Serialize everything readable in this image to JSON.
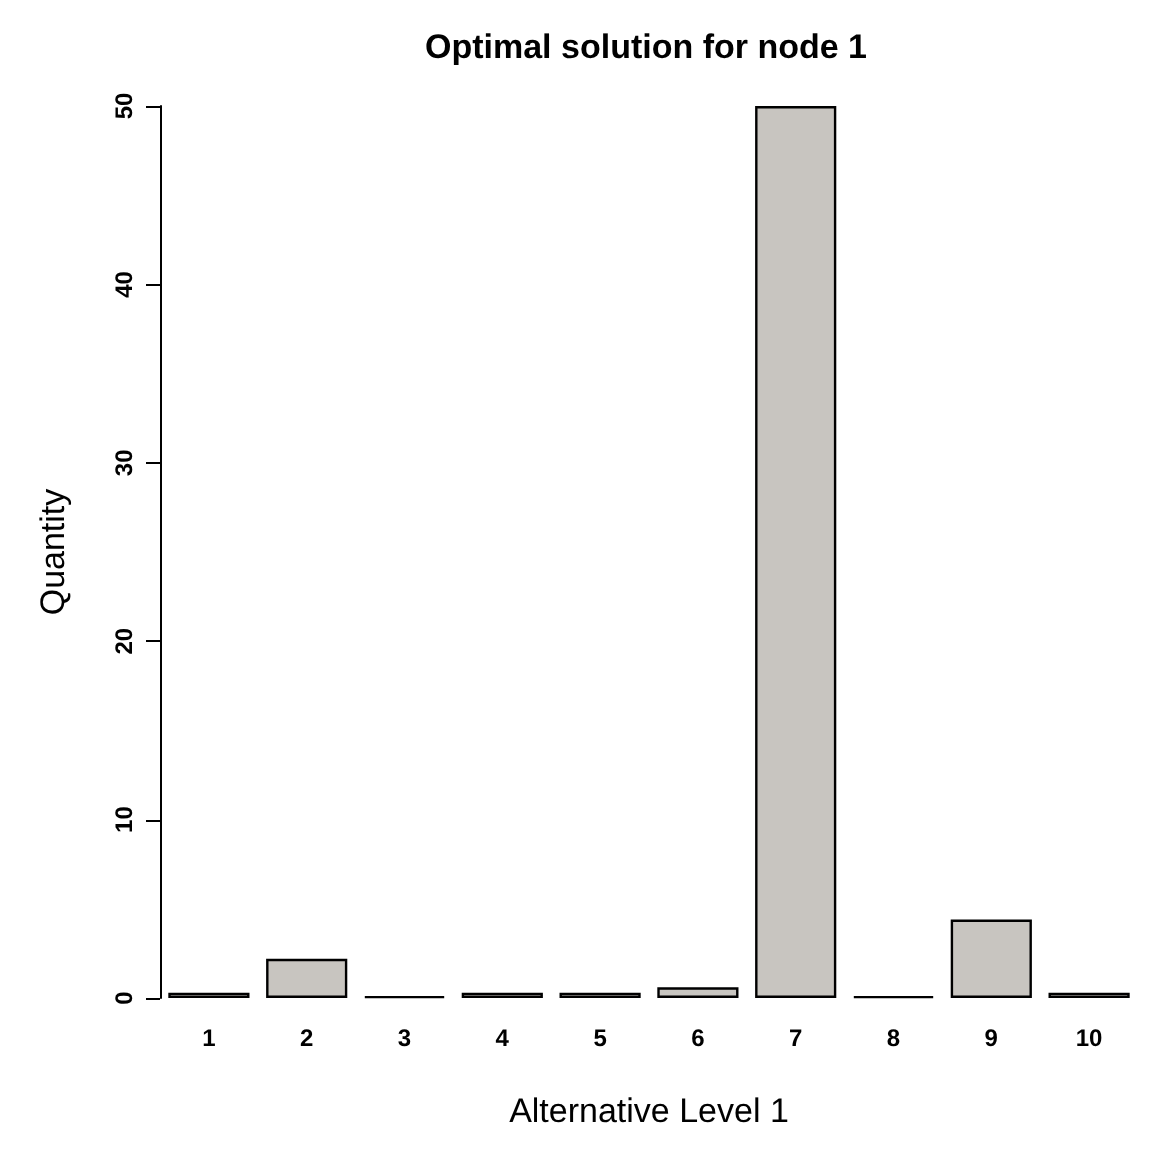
{
  "chart_data": {
    "type": "bar",
    "title": "Optimal solution for node 1",
    "xlabel": "Alternative Level 1",
    "ylabel": "Quantity",
    "categories": [
      "1",
      "2",
      "3",
      "4",
      "5",
      "6",
      "7",
      "8",
      "9",
      "10"
    ],
    "values": [
      0.3,
      2.2,
      0.1,
      0.3,
      0.3,
      0.6,
      50,
      0.1,
      4.4,
      0.3
    ],
    "colors": [
      "#c8c5c0",
      "#c8c5c0",
      "#000000",
      "#c8c5c0",
      "#c8c5c0",
      "#c8c5c0",
      "#c8c5c0",
      "#000000",
      "#c8c5c0",
      "#c8c5c0"
    ],
    "ylim": [
      0,
      50
    ],
    "yticks": [
      0,
      10,
      20,
      30,
      40,
      50
    ],
    "grid": false
  }
}
